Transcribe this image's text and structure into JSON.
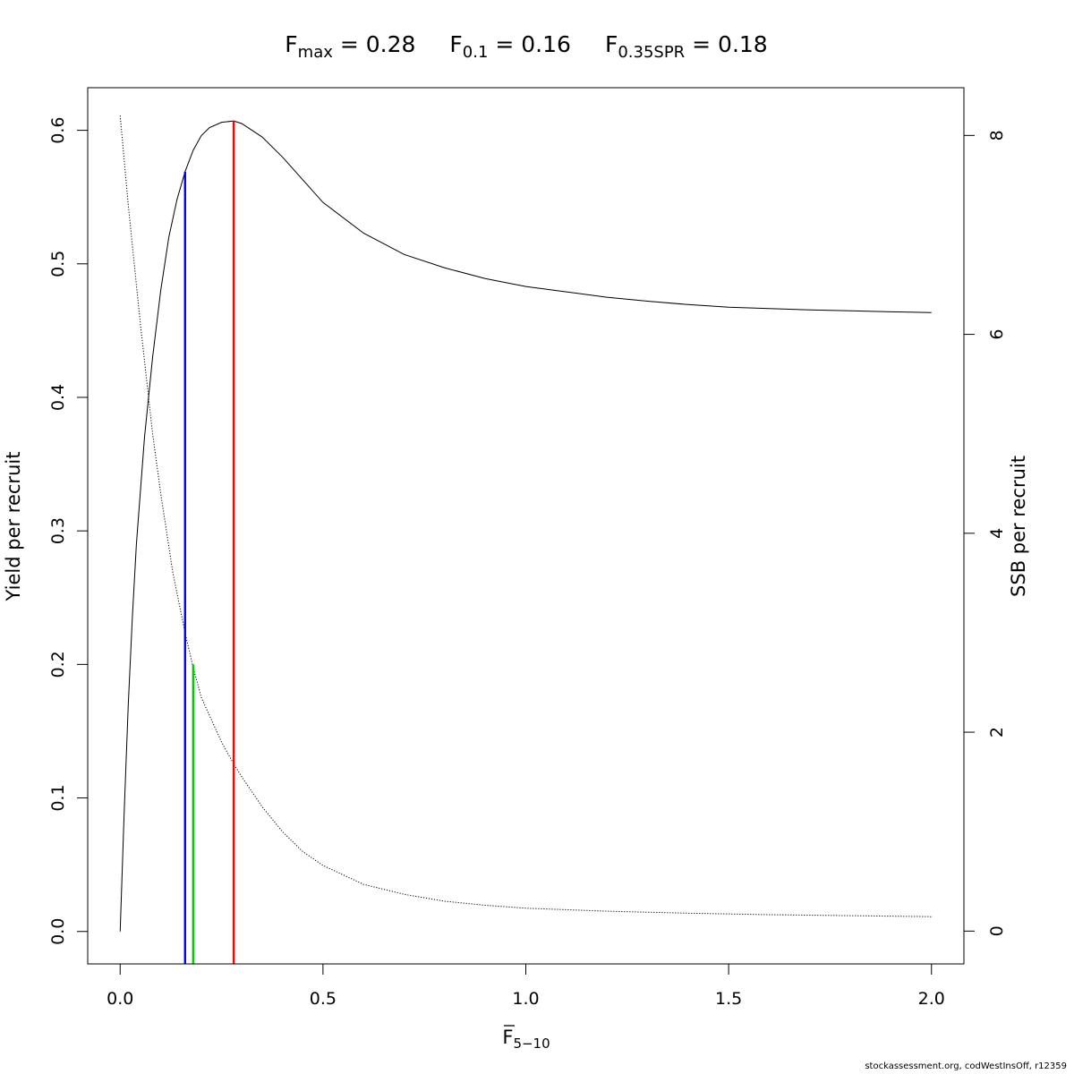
{
  "chart_data": {
    "type": "line",
    "title": {
      "fmax": {
        "base": "F",
        "sub": "max",
        "rest": " = 0.28"
      },
      "f01": {
        "base": "F",
        "sub": "0.1",
        "rest": " = 0.16"
      },
      "fspr": {
        "base": "F",
        "sub": "0.35SPR",
        "rest": " = 0.18"
      }
    },
    "xlabel": {
      "base": "F",
      "sub": "5−10"
    },
    "ylabel": "Yield per recruit",
    "y2label": "SSB per recruit",
    "xlim": [
      -0.08,
      2.08
    ],
    "ylim": [
      -0.0243,
      0.6319
    ],
    "y2lim": [
      -0.33,
      8.48
    ],
    "x_ticks": [
      "0.0",
      "0.5",
      "1.0",
      "1.5",
      "2.0"
    ],
    "y_ticks": [
      "0.0",
      "0.1",
      "0.2",
      "0.3",
      "0.4",
      "0.5",
      "0.6"
    ],
    "y2_ticks": [
      "0",
      "2",
      "4",
      "6",
      "8"
    ],
    "series": [
      {
        "axis": "left",
        "style": "solid",
        "color": "#000000",
        "x": [
          0,
          0.01,
          0.02,
          0.03,
          0.04,
          0.06,
          0.08,
          0.1,
          0.12,
          0.14,
          0.16,
          0.18,
          0.2,
          0.22,
          0.25,
          0.28,
          0.3,
          0.35,
          0.4,
          0.45,
          0.5,
          0.6,
          0.7,
          0.8,
          0.9,
          1.0,
          1.1,
          1.2,
          1.3,
          1.4,
          1.5,
          1.6,
          1.7,
          1.8,
          1.9,
          2.0
        ],
        "values": [
          0,
          0.09,
          0.17,
          0.235,
          0.29,
          0.37,
          0.43,
          0.48,
          0.52,
          0.548,
          0.569,
          0.585,
          0.596,
          0.602,
          0.606,
          0.607,
          0.605,
          0.595,
          0.58,
          0.563,
          0.546,
          0.523,
          0.507,
          0.497,
          0.489,
          0.483,
          0.479,
          0.475,
          0.472,
          0.4695,
          0.4675,
          0.4665,
          0.4655,
          0.4648,
          0.4641,
          0.4635
        ]
      },
      {
        "axis": "right",
        "style": "dotted",
        "color": "#000000",
        "x": [
          0,
          0.02,
          0.05,
          0.08,
          0.1,
          0.13,
          0.16,
          0.18,
          0.2,
          0.25,
          0.28,
          0.3,
          0.35,
          0.4,
          0.45,
          0.5,
          0.6,
          0.7,
          0.8,
          0.9,
          1.0,
          1.2,
          1.4,
          1.6,
          1.8,
          2.0
        ],
        "values": [
          8.2,
          7.3,
          6.1,
          5.0,
          4.4,
          3.6,
          3.0,
          2.65,
          2.35,
          1.9,
          1.68,
          1.55,
          1.25,
          1.0,
          0.8,
          0.66,
          0.47,
          0.37,
          0.3,
          0.26,
          0.23,
          0.2,
          0.18,
          0.165,
          0.155,
          0.145
        ]
      }
    ],
    "reference_lines": [
      {
        "label": "F0.1",
        "x": 0.16,
        "y_top": 0.569,
        "color": "#0000ff"
      },
      {
        "label": "F0.35SPR",
        "x": 0.18,
        "y_top": 0.2,
        "color": "#00cc00"
      },
      {
        "label": "Fmax",
        "x": 0.28,
        "y_top": 0.607,
        "color": "#ff0000"
      }
    ],
    "grid": false,
    "legend": "none"
  },
  "credit": "stockassessment.org, codWestInsOff, r12359"
}
